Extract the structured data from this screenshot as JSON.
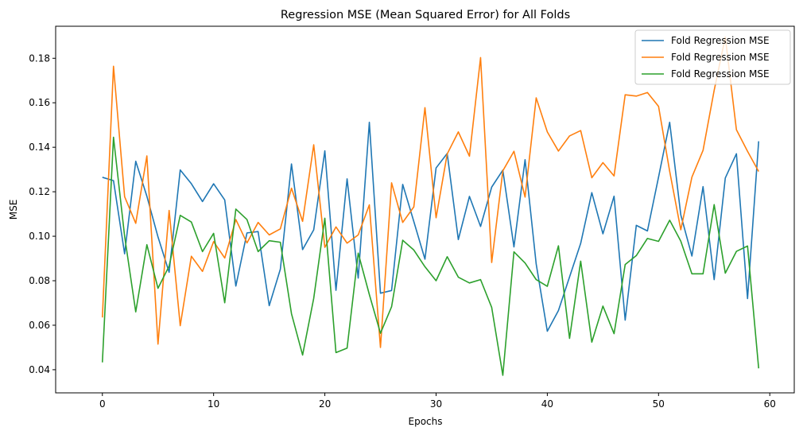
{
  "chart_data": {
    "type": "line",
    "title": "Regression MSE (Mean Squared Error) for All Folds",
    "xlabel": "Epochs",
    "ylabel": "MSE",
    "xlim": [
      -4.2,
      62.2
    ],
    "ylim": [
      0.0296,
      0.1944
    ],
    "xticks": [
      0,
      10,
      20,
      30,
      40,
      50,
      60
    ],
    "yticks": [
      0.04,
      0.06,
      0.08,
      0.1,
      0.12,
      0.14,
      0.16,
      0.18
    ],
    "ytick_labels": [
      "0.04",
      "0.06",
      "0.08",
      "0.10",
      "0.12",
      "0.14",
      "0.16",
      "0.18"
    ],
    "grid": false,
    "legend": {
      "position": "top-right"
    },
    "x": [
      0,
      1,
      2,
      3,
      4,
      5,
      6,
      7,
      8,
      9,
      10,
      11,
      12,
      13,
      14,
      15,
      16,
      17,
      18,
      19,
      20,
      21,
      22,
      23,
      24,
      25,
      26,
      27,
      28,
      29,
      30,
      31,
      32,
      33,
      34,
      35,
      36,
      37,
      38,
      39,
      40,
      41,
      42,
      43,
      44,
      45,
      46,
      47,
      48,
      49,
      50,
      51,
      52,
      53,
      54,
      55,
      56,
      57,
      58,
      59
    ],
    "series": [
      {
        "name": "Fold Regression MSE",
        "color": "#1f77b4",
        "values": [
          0.1265,
          0.125,
          0.0921,
          0.1337,
          0.118,
          0.0997,
          0.0838,
          0.1298,
          0.1236,
          0.1156,
          0.1236,
          0.1163,
          0.0776,
          0.1015,
          0.1021,
          0.0688,
          0.0852,
          0.1325,
          0.094,
          0.1029,
          0.1384,
          0.0757,
          0.1258,
          0.0812,
          0.1512,
          0.0744,
          0.0756,
          0.1233,
          0.1066,
          0.0897,
          0.1307,
          0.1372,
          0.0985,
          0.1179,
          0.1044,
          0.1221,
          0.1297,
          0.0952,
          0.1344,
          0.0875,
          0.0573,
          0.0666,
          0.0817,
          0.0968,
          0.1196,
          0.1011,
          0.118,
          0.0623,
          0.1049,
          0.1024,
          0.1266,
          0.1512,
          0.1096,
          0.0911,
          0.1223,
          0.0805,
          0.1262,
          0.1371,
          0.072,
          0.1427
        ]
      },
      {
        "name": "Fold Regression MSE",
        "color": "#ff7f0e",
        "values": [
          0.0635,
          0.1764,
          0.1178,
          0.1058,
          0.1361,
          0.0515,
          0.1116,
          0.0598,
          0.091,
          0.0842,
          0.0976,
          0.0902,
          0.1075,
          0.097,
          0.1062,
          0.1006,
          0.1033,
          0.1216,
          0.1067,
          0.1411,
          0.095,
          0.1042,
          0.0969,
          0.1006,
          0.1141,
          0.05,
          0.124,
          0.1062,
          0.1132,
          0.1578,
          0.1083,
          0.137,
          0.1469,
          0.136,
          0.1803,
          0.0882,
          0.1294,
          0.1382,
          0.1176,
          0.1622,
          0.1469,
          0.1383,
          0.1451,
          0.1475,
          0.1263,
          0.1331,
          0.1271,
          0.1636,
          0.163,
          0.1646,
          0.1584,
          0.1292,
          0.1029,
          0.1266,
          0.1386,
          0.1656,
          0.1895,
          0.1479,
          0.1382,
          0.1291
        ]
      },
      {
        "name": "Fold Regression MSE",
        "color": "#2ca02c",
        "values": [
          0.0433,
          0.1445,
          0.1,
          0.066,
          0.0962,
          0.0766,
          0.0866,
          0.1094,
          0.1064,
          0.0931,
          0.1013,
          0.0701,
          0.1122,
          0.1075,
          0.0931,
          0.098,
          0.0973,
          0.0652,
          0.0466,
          0.0721,
          0.1081,
          0.0477,
          0.0497,
          0.0924,
          0.0738,
          0.0564,
          0.0683,
          0.0982,
          0.0938,
          0.0863,
          0.08,
          0.0908,
          0.0816,
          0.079,
          0.0805,
          0.068,
          0.0375,
          0.093,
          0.088,
          0.0805,
          0.0775,
          0.0957,
          0.0541,
          0.0888,
          0.0524,
          0.0686,
          0.0562,
          0.0873,
          0.0913,
          0.099,
          0.0977,
          0.1072,
          0.0978,
          0.0831,
          0.0831,
          0.1142,
          0.0834,
          0.0932,
          0.0956,
          0.0406
        ]
      }
    ]
  }
}
